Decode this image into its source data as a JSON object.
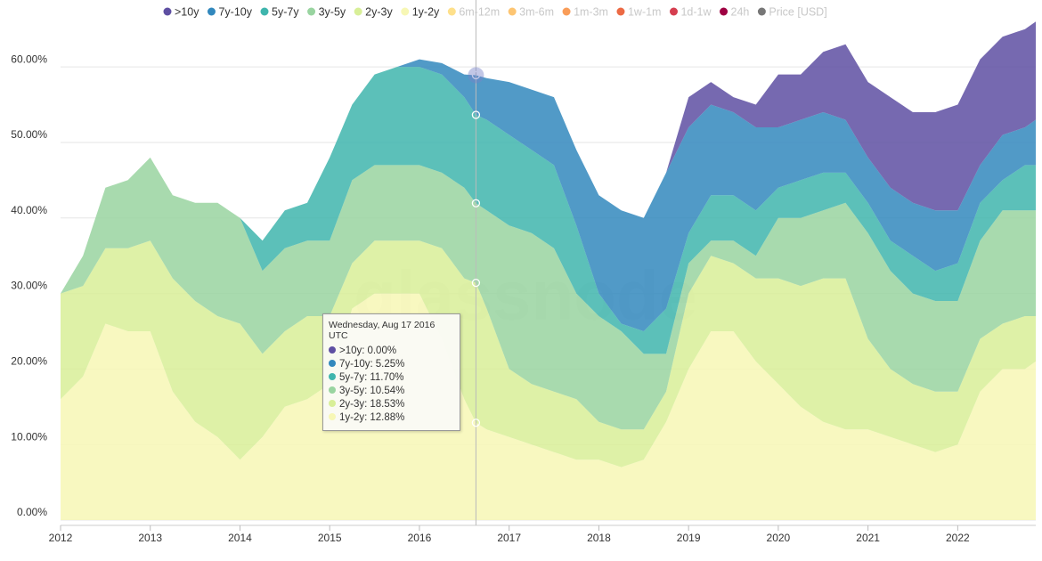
{
  "chart_data": {
    "type": "stacked-area",
    "watermark": "glassnode",
    "x": [
      2012,
      2012.25,
      2012.5,
      2012.75,
      2013,
      2013.25,
      2013.5,
      2013.75,
      2014,
      2014.25,
      2014.5,
      2014.75,
      2015,
      2015.25,
      2015.5,
      2015.75,
      2016,
      2016.25,
      2016.5,
      2016.63,
      2016.75,
      2017,
      2017.25,
      2017.5,
      2017.75,
      2018,
      2018.25,
      2018.5,
      2018.75,
      2019,
      2019.25,
      2019.5,
      2019.75,
      2020,
      2020.25,
      2020.5,
      2020.75,
      2021,
      2021.25,
      2021.5,
      2021.75,
      2022,
      2022.25,
      2022.5,
      2022.75,
      2022.87
    ],
    "series": [
      {
        "name": ">10y",
        "color": "#5e4fa2",
        "values": [
          0,
          0,
          0,
          0,
          0,
          0,
          0,
          0,
          0,
          0,
          0,
          0,
          0,
          0,
          0,
          0,
          0,
          0,
          0,
          0,
          0,
          0,
          0,
          0,
          0,
          0,
          0,
          0,
          0,
          4,
          3,
          2,
          3,
          7,
          6,
          8,
          10,
          10,
          12,
          12,
          13,
          14,
          14,
          13,
          13,
          13
        ]
      },
      {
        "name": "7y-10y",
        "color": "#3288bd",
        "values": [
          0,
          0,
          0,
          0,
          0,
          0,
          0,
          0,
          0,
          0,
          0,
          0,
          0,
          0,
          0,
          0,
          1,
          1.5,
          3,
          5.25,
          5.5,
          7,
          8,
          9,
          10,
          13,
          15,
          15,
          18,
          14,
          12,
          11,
          11,
          8,
          8,
          8,
          7,
          6,
          7,
          7,
          8,
          7,
          5,
          6,
          5,
          6
        ]
      },
      {
        "name": "5y-7y",
        "color": "#3fb5ad",
        "values": [
          0,
          0,
          0,
          0,
          0,
          0,
          0,
          0,
          0,
          4,
          5,
          5,
          11,
          10,
          12,
          13,
          13,
          13,
          12,
          11.7,
          12,
          12,
          11,
          11,
          9,
          3,
          1,
          3,
          6,
          4,
          6,
          6,
          6,
          4,
          5,
          5,
          4,
          4,
          4,
          5,
          4,
          5,
          5,
          4,
          6,
          6
        ]
      },
      {
        "name": "3y-5y",
        "color": "#99d4a0",
        "values": [
          0,
          4,
          8,
          9,
          11,
          11,
          13,
          15,
          14,
          11,
          11,
          10,
          10,
          11,
          10,
          10,
          10,
          10,
          12,
          10.54,
          13,
          19,
          20,
          19,
          14,
          14,
          13,
          10,
          5,
          4,
          2,
          3,
          3,
          8,
          9,
          9,
          10,
          14,
          13,
          12,
          12,
          12,
          13,
          15,
          14,
          14
        ]
      },
      {
        "name": "2y-3y",
        "color": "#d8ef98",
        "values": [
          14,
          12,
          10,
          11,
          12,
          15,
          16,
          16,
          18,
          11,
          10,
          11,
          9,
          6,
          7,
          7,
          7,
          12,
          16,
          18.53,
          16,
          9,
          8,
          8,
          8,
          5,
          5,
          4,
          4,
          10,
          10,
          9,
          11,
          14,
          16,
          19,
          20,
          12,
          9,
          8,
          8,
          7,
          7,
          6,
          7,
          6
        ]
      },
      {
        "name": "1y-2y",
        "color": "#f7f7b5",
        "values": [
          16,
          19,
          26,
          25,
          25,
          17,
          13,
          11,
          8,
          11,
          15,
          16,
          18,
          28,
          30,
          30,
          30,
          24,
          16,
          12.88,
          12,
          11,
          10,
          9,
          8,
          8,
          7,
          8,
          13,
          20,
          25,
          25,
          21,
          18,
          15,
          13,
          12,
          12,
          11,
          10,
          9,
          10,
          17,
          20,
          20,
          21
        ]
      }
    ],
    "hidden_series": [
      {
        "name": "6m-12m",
        "color": "#fee08b"
      },
      {
        "name": "3m-6m",
        "color": "#fdc572"
      },
      {
        "name": "1m-3m",
        "color": "#f99d59"
      },
      {
        "name": "1w-1m",
        "color": "#ec6a44"
      },
      {
        "name": "1d-1w",
        "color": "#d53e4f"
      },
      {
        "name": "24h",
        "color": "#9e0142"
      },
      {
        "name": "Price [USD]",
        "color": "#777777"
      }
    ],
    "xlim": [
      2012,
      2022.87
    ],
    "xticks": [
      2012,
      2013,
      2014,
      2015,
      2016,
      2017,
      2018,
      2019,
      2020,
      2021,
      2022
    ],
    "ylim": [
      0,
      66.5
    ],
    "yticks": [
      {
        "value": 0,
        "label": "0.00%"
      },
      {
        "value": 10,
        "label": "10.00%"
      },
      {
        "value": 20,
        "label": "20.00%"
      },
      {
        "value": 30,
        "label": "30.00%"
      },
      {
        "value": 40,
        "label": "40.00%"
      },
      {
        "value": 50,
        "label": "50.00%"
      },
      {
        "value": 60,
        "label": "60.00%"
      }
    ],
    "grid": true,
    "tooltip": {
      "x": 2016.63,
      "date": "Wednesday, Aug 17 2016 UTC",
      "values": [
        0,
        5.25,
        11.7,
        10.54,
        18.53,
        12.88
      ],
      "value_labels": [
        "0.00%",
        "5.25%",
        "11.70%",
        "10.54%",
        "18.53%",
        "12.88%"
      ]
    }
  }
}
